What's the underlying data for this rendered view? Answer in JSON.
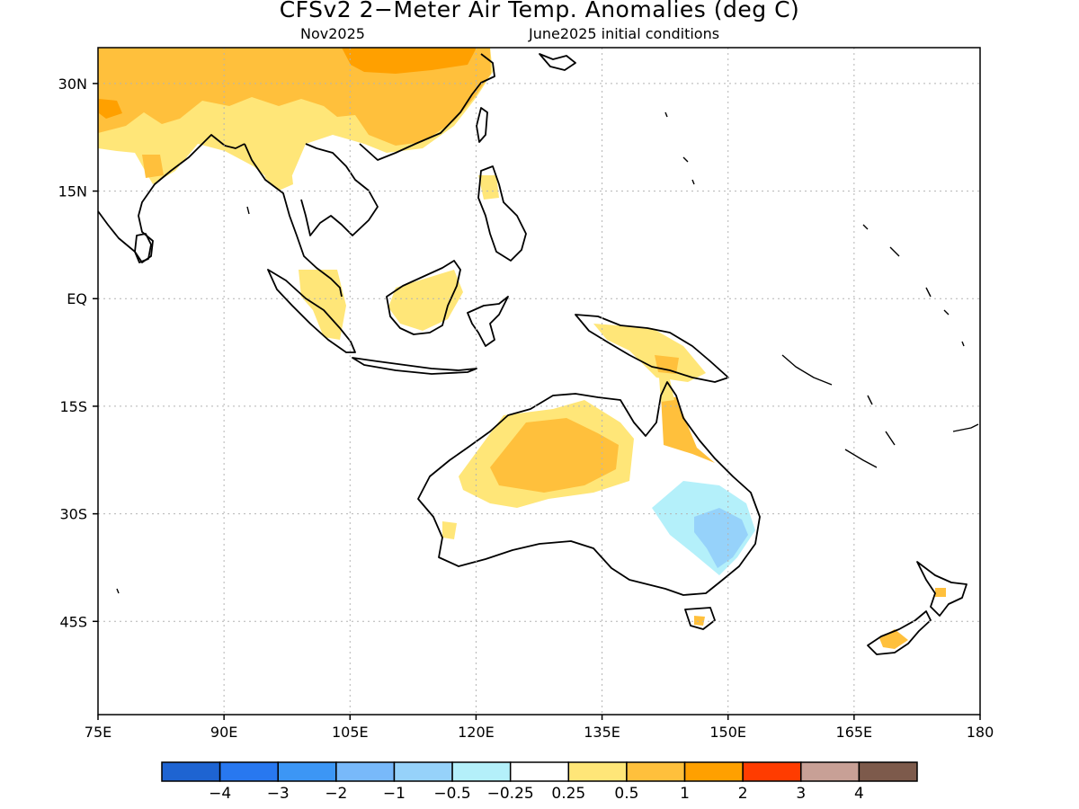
{
  "header": {
    "title": "CFSv2 2−Meter Air Temp. Anomalies (deg C)",
    "month": "Nov2025",
    "initial_conditions": "June2025 initial conditions"
  },
  "map": {
    "region": "Indian Ocean / Maritime Continent / Australia / Western Pacific",
    "lon_range": [
      75,
      180
    ],
    "lat_range": [
      -58,
      35
    ],
    "lat_ticks": [
      "30N",
      "15N",
      "EQ",
      "15S",
      "30S",
      "45S"
    ],
    "lat_tick_values": [
      30,
      15,
      0,
      -15,
      -30,
      -45
    ],
    "lon_ticks": [
      "75E",
      "90E",
      "105E",
      "120E",
      "135E",
      "150E",
      "165E",
      "180"
    ],
    "lon_tick_values": [
      75,
      90,
      105,
      120,
      135,
      150,
      165,
      180
    ],
    "grid": "dotted"
  },
  "colorbar": {
    "colors": [
      "#1e64d2",
      "#2878f0",
      "#3c96f5",
      "#78b9fa",
      "#96d2fa",
      "#b4f0fa",
      "#ffffff",
      "#ffe678",
      "#ffc03c",
      "#ffa000",
      "#ff3c00",
      "#c8a096",
      "#7d5a4b"
    ],
    "labels": [
      "−4",
      "−3",
      "−2",
      "−1",
      "−0.5",
      "−0.25",
      "0.25",
      "0.5",
      "1",
      "2",
      "3",
      "4"
    ]
  }
}
